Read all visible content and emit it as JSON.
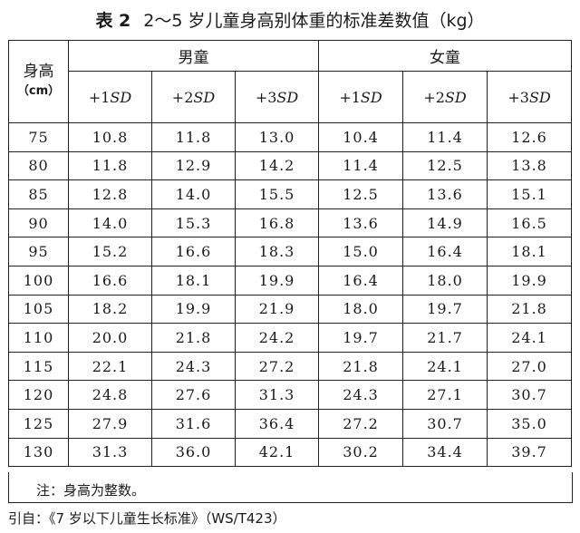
{
  "title": {
    "label": "表 2",
    "text": "2～5 岁儿童身高别体重的标准差数值（kg）"
  },
  "header": {
    "height_label": "身高",
    "height_unit": "（cm）",
    "male": "男童",
    "female": "女童",
    "sd_cols": [
      {
        "prefix": "+1",
        "sd": "SD"
      },
      {
        "prefix": "+2",
        "sd": "SD"
      },
      {
        "prefix": "+3",
        "sd": "SD"
      },
      {
        "prefix": "+1",
        "sd": "SD"
      },
      {
        "prefix": "+2",
        "sd": "SD"
      },
      {
        "prefix": "+3",
        "sd": "SD"
      }
    ]
  },
  "rows": [
    [
      "75",
      "10.8",
      "11.8",
      "13.0",
      "10.4",
      "11.4",
      "12.6"
    ],
    [
      "80",
      "11.8",
      "12.9",
      "14.2",
      "11.4",
      "12.5",
      "13.8"
    ],
    [
      "85",
      "12.8",
      "14.0",
      "15.5",
      "12.5",
      "13.6",
      "15.1"
    ],
    [
      "90",
      "14.0",
      "15.3",
      "16.8",
      "13.6",
      "14.9",
      "16.5"
    ],
    [
      "95",
      "15.2",
      "16.6",
      "18.3",
      "15.0",
      "16.4",
      "18.1"
    ],
    [
      "100",
      "16.6",
      "18.1",
      "19.9",
      "16.4",
      "18.0",
      "19.9"
    ],
    [
      "105",
      "18.2",
      "19.9",
      "21.9",
      "18.0",
      "19.7",
      "21.8"
    ],
    [
      "110",
      "20.0",
      "21.8",
      "24.2",
      "19.7",
      "21.7",
      "24.1"
    ],
    [
      "115",
      "22.1",
      "24.3",
      "27.2",
      "21.8",
      "24.1",
      "27.0"
    ],
    [
      "120",
      "24.8",
      "27.6",
      "31.3",
      "24.3",
      "27.1",
      "30.7"
    ],
    [
      "125",
      "27.9",
      "31.6",
      "36.4",
      "27.2",
      "30.7",
      "35.0"
    ],
    [
      "130",
      "31.3",
      "36.0",
      "42.1",
      "30.2",
      "34.4",
      "39.7"
    ]
  ],
  "note": "注：身高为整数。",
  "reference": "引自：《7 岁以下儿童生长标准》（WS/T423）"
}
